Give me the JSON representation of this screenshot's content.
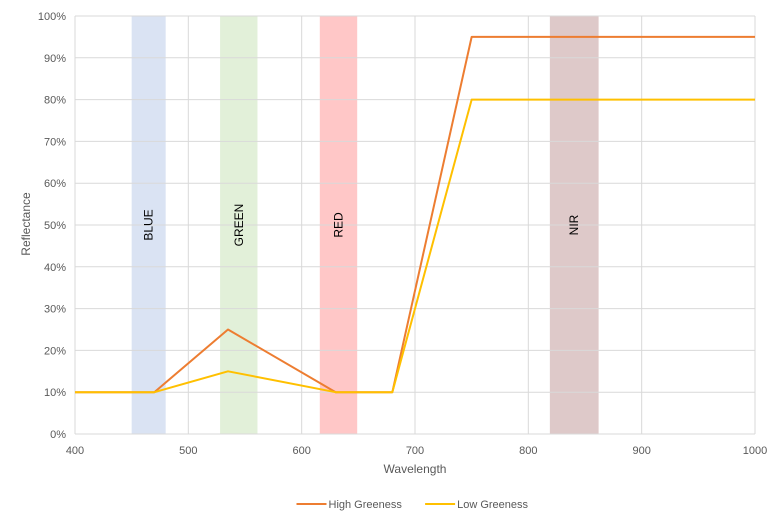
{
  "chart_data": {
    "type": "line",
    "xlabel": "Wavelength",
    "ylabel": "Reflectance",
    "xlim": [
      400,
      1000
    ],
    "ylim": [
      0,
      1
    ],
    "x_ticks": [
      400,
      500,
      600,
      700,
      800,
      900,
      1000
    ],
    "y_ticks": [
      0,
      0.1,
      0.2,
      0.3,
      0.4,
      0.5,
      0.6,
      0.7,
      0.8,
      0.9,
      1.0
    ],
    "x_tick_labels": [
      "400",
      "500",
      "600",
      "700",
      "800",
      "900",
      "1000"
    ],
    "y_tick_labels": [
      "0%",
      "10%",
      "20%",
      "30%",
      "40%",
      "50%",
      "60%",
      "70%",
      "80%",
      "90%",
      "100%"
    ],
    "grid": true,
    "legend_position": "bottom",
    "bands": [
      {
        "label": "BLUE",
        "x_start": 450,
        "x_end": 480,
        "color": "#dae3f3"
      },
      {
        "label": "GREEN",
        "x_start": 528,
        "x_end": 561,
        "color": "#e2f0d9"
      },
      {
        "label": "RED",
        "x_start": 616,
        "x_end": 649,
        "color": "#ffc7c7"
      },
      {
        "label": "NIR",
        "x_start": 819,
        "x_end": 862,
        "color": "#dec9c9"
      }
    ],
    "series": [
      {
        "name": "High Greeness",
        "color": "#ed7d31",
        "x": [
          400,
          470,
          535,
          630,
          680,
          750,
          1000
        ],
        "values": [
          0.1,
          0.1,
          0.25,
          0.1,
          0.1,
          0.95,
          0.95
        ]
      },
      {
        "name": "Low Greeness",
        "color": "#ffc000",
        "x": [
          400,
          470,
          535,
          630,
          680,
          750,
          1000
        ],
        "values": [
          0.1,
          0.1,
          0.15,
          0.1,
          0.1,
          0.8,
          0.8
        ]
      }
    ]
  }
}
